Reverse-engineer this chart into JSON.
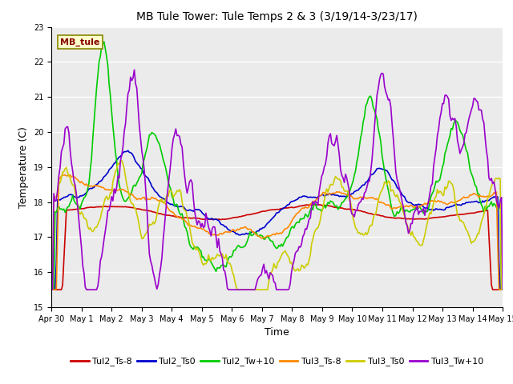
{
  "title": "MB Tule Tower: Tule Temps 2 & 3 (3/19/14-3/23/17)",
  "xlabel": "Time",
  "ylabel": "Temperature (C)",
  "ylim": [
    15.0,
    23.0
  ],
  "yticks": [
    15.0,
    16.0,
    17.0,
    18.0,
    19.0,
    20.0,
    21.0,
    22.0,
    23.0
  ],
  "x_labels": [
    "Apr 30",
    "May 1",
    "May 2",
    "May 3",
    "May 4",
    "May 5",
    "May 6",
    "May 7",
    "May 8",
    "May 9",
    "May 10",
    "May 11",
    "May 12",
    "May 13",
    "May 14",
    "May 15"
  ],
  "series": {
    "Tul2_Ts-8": {
      "color": "#cc0000",
      "lw": 1.2
    },
    "Tul2_Ts0": {
      "color": "#0000cc",
      "lw": 1.2
    },
    "Tul2_Tw+10": {
      "color": "#00cc00",
      "lw": 1.2
    },
    "Tul3_Ts-8": {
      "color": "#ff8800",
      "lw": 1.2
    },
    "Tul3_Ts0": {
      "color": "#cccc00",
      "lw": 1.2
    },
    "Tul3_Tw+10": {
      "color": "#9900cc",
      "lw": 1.2
    }
  },
  "legend_label": "MB_tule",
  "legend_box_facecolor": "#ffffcc",
  "legend_box_edgecolor": "#888800",
  "legend_text_color": "#880000",
  "plot_bg": "#ebebeb",
  "fig_bg": "#ffffff",
  "grid_color": "#ffffff",
  "title_fontsize": 10,
  "axis_label_fontsize": 9,
  "tick_fontsize": 7,
  "legend_fontsize": 8
}
